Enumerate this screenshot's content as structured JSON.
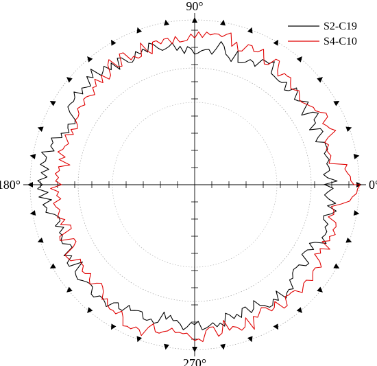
{
  "chart_data": {
    "type": "line",
    "projection": "polar",
    "theta_unit": "degrees",
    "angle_labels": [
      {
        "angle": 0,
        "text": "0°"
      },
      {
        "angle": 90,
        "text": "90°"
      },
      {
        "angle": 180,
        "text": "180°"
      },
      {
        "angle": 270,
        "text": "270°"
      }
    ],
    "radial_range": [
      0,
      1
    ],
    "reference_circles": [
      0.68,
      0.96
    ],
    "grid": true,
    "legend_position": "top-right",
    "colors": {
      "S2-C19": "#000000",
      "S4-C10": "#e00000"
    },
    "series": [
      {
        "name": "S2-C19",
        "theta": [
          0,
          10,
          20,
          30,
          40,
          50,
          60,
          70,
          80,
          90,
          100,
          110,
          120,
          130,
          140,
          150,
          160,
          170,
          180,
          190,
          200,
          210,
          220,
          230,
          240,
          250,
          260,
          270,
          280,
          290,
          300,
          310,
          320,
          330,
          340,
          350
        ],
        "r": [
          0.79,
          0.78,
          0.78,
          0.79,
          0.77,
          0.79,
          0.82,
          0.77,
          0.81,
          0.78,
          0.8,
          0.84,
          0.82,
          0.88,
          0.86,
          0.82,
          0.84,
          0.89,
          0.89,
          0.86,
          0.82,
          0.85,
          0.83,
          0.87,
          0.82,
          0.81,
          0.79,
          0.83,
          0.82,
          0.8,
          0.79,
          0.82,
          0.8,
          0.77,
          0.81,
          0.8
        ]
      },
      {
        "name": "S4-C10",
        "theta": [
          0,
          10,
          20,
          30,
          40,
          50,
          60,
          70,
          80,
          90,
          100,
          110,
          120,
          130,
          140,
          150,
          160,
          170,
          180,
          190,
          200,
          210,
          220,
          230,
          240,
          250,
          260,
          270,
          280,
          290,
          300,
          310,
          320,
          330,
          340,
          350
        ],
        "r": [
          0.95,
          0.82,
          0.84,
          0.83,
          0.79,
          0.8,
          0.85,
          0.84,
          0.88,
          0.86,
          0.85,
          0.84,
          0.85,
          0.83,
          0.8,
          0.78,
          0.8,
          0.78,
          0.8,
          0.79,
          0.8,
          0.82,
          0.83,
          0.84,
          0.87,
          0.9,
          0.86,
          0.92,
          0.85,
          0.87,
          0.84,
          0.86,
          0.85,
          0.83,
          0.84,
          0.84
        ]
      }
    ]
  }
}
